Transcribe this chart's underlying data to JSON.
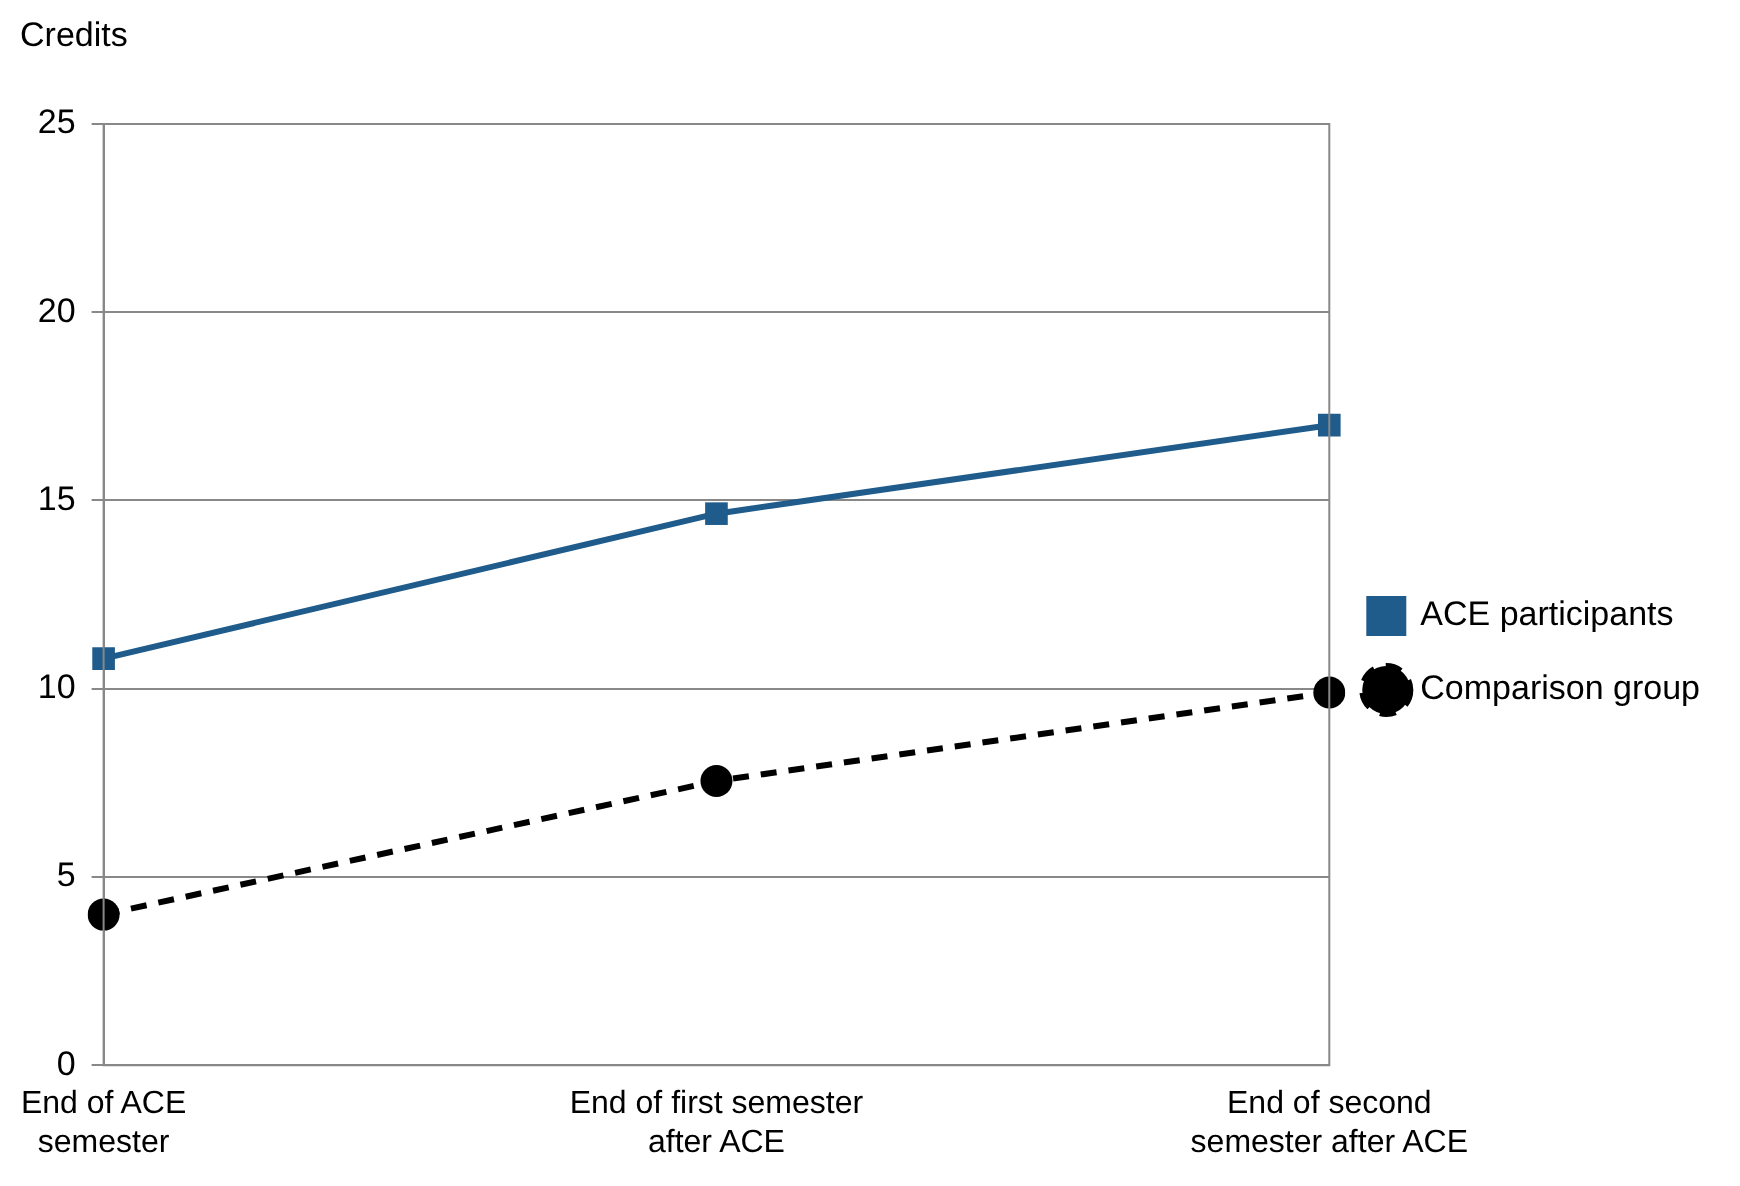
{
  "chart_data": {
    "type": "line",
    "ylabel": "Credits",
    "categories": [
      "End of ACE semester",
      "End of first semester after ACE",
      "End of second semester after ACE"
    ],
    "series": [
      {
        "name": "ACE participants",
        "color": "#1f5c8b",
        "values": [
          10.8,
          14.65,
          17.0
        ],
        "marker": "square",
        "line_style": "solid"
      },
      {
        "name": "Comparison group",
        "color": "#000000",
        "values": [
          4.0,
          7.55,
          9.9
        ],
        "marker": "circle",
        "line_style": "dashed"
      }
    ],
    "ylim": [
      0,
      25
    ],
    "yticks": [
      0,
      5,
      10,
      15,
      20,
      25
    ],
    "grid": "y",
    "legend": "right"
  }
}
